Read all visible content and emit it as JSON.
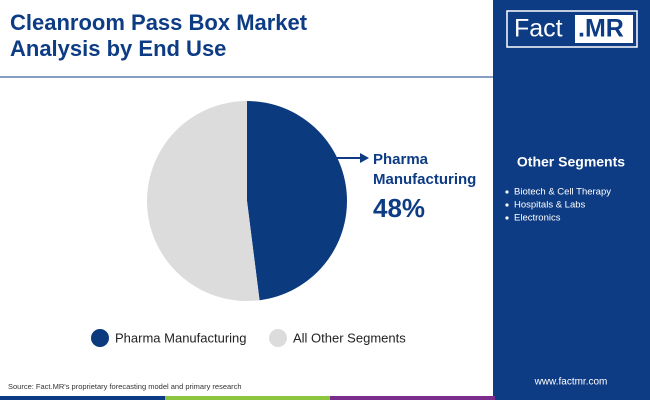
{
  "chart_data": {
    "type": "pie",
    "title": "Cleanroom Pass Box Market Analysis by End Use",
    "categories": [
      "Pharma Manufacturing",
      "All Other Segments"
    ],
    "values": [
      48,
      52
    ],
    "value_labels": [
      "48%",
      null
    ],
    "colors": [
      "#0b3a7e",
      "#dcdcdc"
    ],
    "legend": "bottom"
  },
  "logo": [
    "Fact",
    ".MR"
  ],
  "sidebar": {
    "title": "Other Segments",
    "items": [
      "Biotech & Cell Therapy",
      "Hospitals & Labs",
      "Electronics"
    ]
  },
  "source": "Source: Fact.MR's proprietary forecasting model and primary research",
  "website": "www.factmr.com"
}
